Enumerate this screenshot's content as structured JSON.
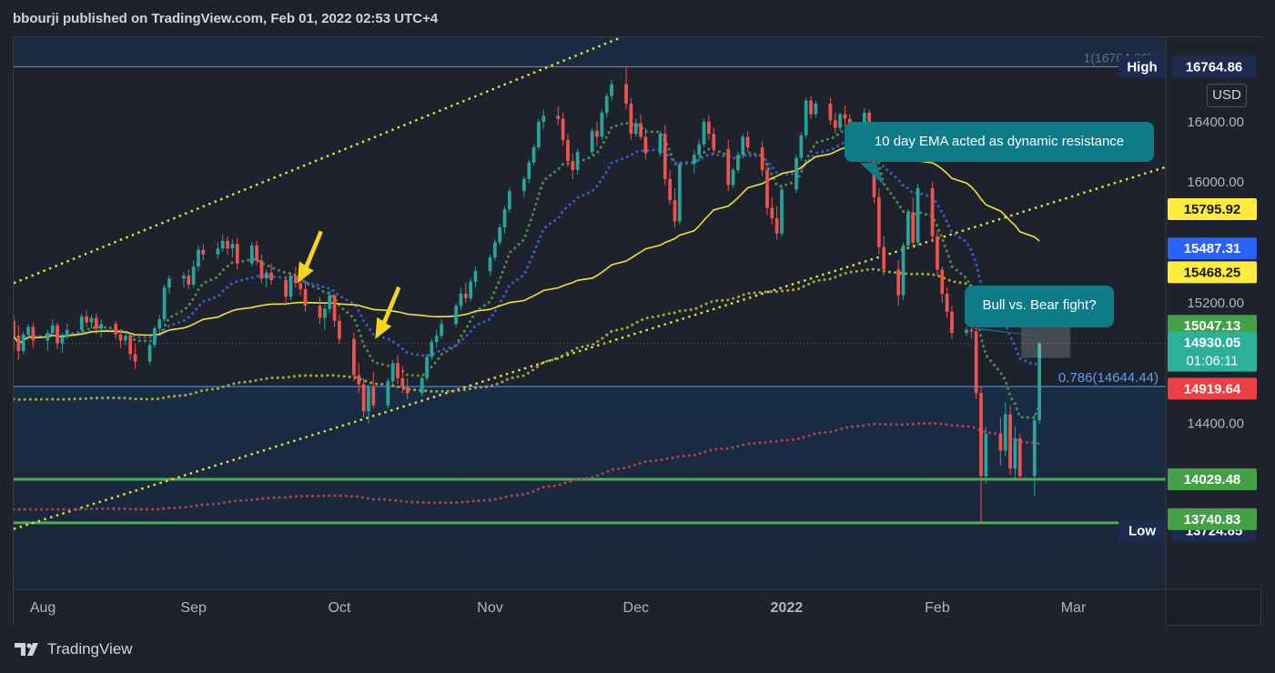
{
  "header": {
    "text": "bbourji published on TradingView.com, Feb 01, 2022 02:53 UTC+4"
  },
  "footer": {
    "brand": "TradingView"
  },
  "currency_button": "USD",
  "annotations": {
    "ema_callout": "10 day EMA acted as dynamic resistance",
    "fight_callout": "Bull vs. Bear fight?"
  },
  "colors": {
    "background": "#1a1e29",
    "up_candle": "#26a69a",
    "down_candle": "#ef5350",
    "ema_10": "#4e8c4a",
    "ema_20": "#3b5bc0",
    "sma_50": "#f2e13a",
    "ema_100": "#a8a640",
    "ema_200": "#b0424f",
    "channel": "#e6e33a",
    "support": "#4caf50",
    "callout": "#0e7c86"
  },
  "chart_data": {
    "type": "candlestick",
    "title": "",
    "y_ticks": [
      14400,
      14800,
      15200,
      15600,
      16000,
      16400
    ],
    "y_tick_labels": [
      "14400.00",
      "",
      "15200.00",
      "",
      "16000.00",
      "16400.00"
    ],
    "ylim": [
      13300,
      16960
    ],
    "x_labels": [
      {
        "label": "Aug",
        "date": "2021-08-01"
      },
      {
        "label": "Sep",
        "date": "2021-09-01"
      },
      {
        "label": "Oct",
        "date": "2021-10-01"
      },
      {
        "label": "Nov",
        "date": "2021-11-01"
      },
      {
        "label": "Dec",
        "date": "2021-12-01"
      },
      {
        "label": "2022",
        "date": "2022-01-01"
      },
      {
        "label": "Feb",
        "date": "2022-02-01"
      },
      {
        "label": "Mar",
        "date": "2022-03-01"
      }
    ],
    "xlim": [
      "2021-07-26",
      "2022-03-20"
    ],
    "high": {
      "label": "High",
      "value": 16764.86
    },
    "low": {
      "label": "Low",
      "value": 13724.85
    },
    "fib": {
      "label": "0.786(14644.44)",
      "value": 14644.44,
      "top_label": "1(16764.86)"
    },
    "price_badges": [
      {
        "value": "15795.92",
        "price": 15795.92,
        "bg": "#ffeb3b",
        "fg": "#131722"
      },
      {
        "value": "15487.31",
        "price": 15487.31,
        "bg": "#2962ff",
        "fg": "#ffffff"
      },
      {
        "value": "15468.25",
        "price": 15468.25,
        "bg": "#ffeb3b",
        "fg": "#131722"
      },
      {
        "value": "15047.13",
        "price": 15047.13,
        "bg": "#43a047",
        "fg": "#ffffff"
      },
      {
        "value": "14919.64",
        "price": 14919.64,
        "bg": "#ef3d44",
        "fg": "#ffffff"
      },
      {
        "value": "14029.48",
        "price": 14029.48,
        "bg": "#43a047",
        "fg": "#ffffff"
      },
      {
        "value": "13740.83",
        "price": 13740.83,
        "bg": "#43a047",
        "fg": "#ffffff"
      }
    ],
    "current": {
      "price": "14930.05",
      "countdown": "01:06:11",
      "value": 14930.05
    },
    "supports": [
      14029.48,
      13740.83
    ],
    "channel_lines": [
      {
        "from": [
          "2021-07-26",
          15330
        ],
        "to": [
          "2021-11-28",
          16960
        ]
      },
      {
        "from": [
          "2021-07-26",
          13700
        ],
        "to": [
          "2022-03-20",
          16100
        ]
      }
    ],
    "candles": [
      [
        "2021-07-26",
        15080,
        15120,
        14880,
        14980
      ],
      [
        "2021-07-27",
        14980,
        15050,
        14820,
        14880
      ],
      [
        "2021-07-28",
        14880,
        15010,
        14860,
        14990
      ],
      [
        "2021-07-29",
        14990,
        15060,
        14950,
        15040
      ],
      [
        "2021-07-30",
        15040,
        15070,
        14900,
        14950
      ],
      [
        "2021-08-02",
        14950,
        15020,
        14880,
        15000
      ],
      [
        "2021-08-03",
        15000,
        15090,
        14980,
        15050
      ],
      [
        "2021-08-04",
        15050,
        15070,
        14890,
        14930
      ],
      [
        "2021-08-05",
        14930,
        15000,
        14870,
        14970
      ],
      [
        "2021-08-06",
        14970,
        15060,
        14960,
        15020
      ],
      [
        "2021-08-09",
        15020,
        15130,
        15000,
        15110
      ],
      [
        "2021-08-10",
        15110,
        15150,
        15040,
        15070
      ],
      [
        "2021-08-11",
        15070,
        15120,
        15030,
        15100
      ],
      [
        "2021-08-12",
        15100,
        15130,
        14990,
        15030
      ],
      [
        "2021-08-13",
        15030,
        15090,
        14970,
        15060
      ],
      [
        "2021-08-16",
        15060,
        15080,
        14960,
        14990
      ],
      [
        "2021-08-17",
        14990,
        15020,
        14900,
        14950
      ],
      [
        "2021-08-18",
        14950,
        15010,
        14920,
        14980
      ],
      [
        "2021-08-19",
        14980,
        15000,
        14820,
        14860
      ],
      [
        "2021-08-20",
        14860,
        14930,
        14760,
        14810
      ],
      [
        "2021-08-23",
        14810,
        14930,
        14790,
        14920
      ],
      [
        "2021-08-24",
        14920,
        15050,
        14900,
        15030
      ],
      [
        "2021-08-25",
        15030,
        15120,
        15000,
        15090
      ],
      [
        "2021-08-26",
        15090,
        15320,
        15070,
        15300
      ],
      [
        "2021-08-27",
        15300,
        15380,
        15260,
        15360
      ],
      [
        "2021-08-30",
        15360,
        15400,
        15300,
        15380
      ],
      [
        "2021-08-31",
        15380,
        15420,
        15290,
        15320
      ],
      [
        "2021-09-01",
        15320,
        15480,
        15300,
        15440
      ],
      [
        "2021-09-02",
        15440,
        15580,
        15410,
        15550
      ],
      [
        "2021-09-03",
        15550,
        15590,
        15480,
        15520
      ],
      [
        "2021-09-06",
        15520,
        15600,
        15490,
        15560
      ],
      [
        "2021-09-07",
        15560,
        15650,
        15540,
        15610
      ],
      [
        "2021-09-08",
        15610,
        15640,
        15520,
        15560
      ],
      [
        "2021-09-09",
        15560,
        15620,
        15500,
        15590
      ],
      [
        "2021-09-10",
        15590,
        15630,
        15420,
        15460
      ],
      [
        "2021-09-13",
        15460,
        15600,
        15440,
        15580
      ],
      [
        "2021-09-14",
        15580,
        15610,
        15450,
        15480
      ],
      [
        "2021-09-15",
        15480,
        15520,
        15330,
        15360
      ],
      [
        "2021-09-16",
        15360,
        15420,
        15300,
        15400
      ],
      [
        "2021-09-17",
        15400,
        15460,
        15320,
        15350
      ],
      [
        "2021-09-20",
        15350,
        15380,
        15180,
        15240
      ],
      [
        "2021-09-21",
        15240,
        15400,
        15220,
        15380
      ],
      [
        "2021-09-22",
        15380,
        15440,
        15300,
        15330
      ],
      [
        "2021-09-23",
        15330,
        15380,
        15250,
        15290
      ],
      [
        "2021-09-24",
        15290,
        15340,
        15140,
        15180
      ],
      [
        "2021-09-27",
        15180,
        15240,
        15060,
        15100
      ],
      [
        "2021-09-28",
        15100,
        15190,
        15020,
        15160
      ],
      [
        "2021-09-29",
        15160,
        15280,
        15130,
        15250
      ],
      [
        "2021-09-30",
        15250,
        15260,
        15040,
        15080
      ],
      [
        "2021-10-01",
        15080,
        15120,
        14930,
        14960
      ],
      [
        "2021-10-04",
        14960,
        15000,
        14680,
        14720
      ],
      [
        "2021-10-05",
        14720,
        14800,
        14600,
        14660
      ],
      [
        "2021-10-06",
        14660,
        14700,
        14440,
        14480
      ],
      [
        "2021-10-07",
        14480,
        14660,
        14400,
        14640
      ],
      [
        "2021-10-08",
        14640,
        14740,
        14500,
        14520
      ],
      [
        "2021-10-11",
        14520,
        14700,
        14500,
        14680
      ],
      [
        "2021-10-12",
        14680,
        14820,
        14660,
        14800
      ],
      [
        "2021-10-13",
        14800,
        14850,
        14660,
        14700
      ],
      [
        "2021-10-14",
        14700,
        14780,
        14600,
        14640
      ],
      [
        "2021-10-15",
        14640,
        14700,
        14560,
        14600
      ],
      [
        "2021-10-18",
        14600,
        14720,
        14580,
        14700
      ],
      [
        "2021-10-19",
        14700,
        14860,
        14680,
        14840
      ],
      [
        "2021-10-20",
        14840,
        14960,
        14820,
        14940
      ],
      [
        "2021-10-21",
        14940,
        15020,
        14900,
        14980
      ],
      [
        "2021-10-22",
        14980,
        15090,
        14960,
        15060
      ],
      [
        "2021-10-25",
        15060,
        15200,
        15040,
        15180
      ],
      [
        "2021-10-26",
        15180,
        15300,
        15150,
        15260
      ],
      [
        "2021-10-27",
        15260,
        15330,
        15200,
        15230
      ],
      [
        "2021-10-28",
        15230,
        15360,
        15210,
        15340
      ],
      [
        "2021-10-29",
        15340,
        15440,
        15300,
        15410
      ],
      [
        "2021-11-01",
        15410,
        15520,
        15380,
        15500
      ],
      [
        "2021-11-02",
        15500,
        15620,
        15480,
        15600
      ],
      [
        "2021-11-03",
        15600,
        15720,
        15580,
        15700
      ],
      [
        "2021-11-04",
        15700,
        15840,
        15660,
        15820
      ],
      [
        "2021-11-05",
        15820,
        15960,
        15800,
        15940
      ],
      [
        "2021-11-08",
        15940,
        16040,
        15900,
        16020
      ],
      [
        "2021-11-09",
        16020,
        16150,
        15990,
        16130
      ],
      [
        "2021-11-10",
        16130,
        16250,
        16110,
        16230
      ],
      [
        "2021-11-11",
        16230,
        16420,
        16210,
        16400
      ],
      [
        "2021-11-12",
        16400,
        16480,
        16350,
        16440
      ],
      [
        "2021-11-15",
        16440,
        16500,
        16380,
        16420
      ],
      [
        "2021-11-16",
        16420,
        16460,
        16240,
        16280
      ],
      [
        "2021-11-17",
        16280,
        16320,
        16100,
        16140
      ],
      [
        "2021-11-18",
        16140,
        16190,
        16020,
        16080
      ],
      [
        "2021-11-19",
        16080,
        16220,
        16050,
        16200
      ],
      [
        "2021-11-22",
        16200,
        16360,
        16180,
        16340
      ],
      [
        "2021-11-23",
        16340,
        16400,
        16240,
        16300
      ],
      [
        "2021-11-24",
        16300,
        16480,
        16280,
        16460
      ],
      [
        "2021-11-25",
        16460,
        16590,
        16430,
        16570
      ],
      [
        "2021-11-26",
        16570,
        16680,
        16540,
        16650
      ],
      [
        "2021-11-29",
        16650,
        16765,
        16480,
        16520
      ],
      [
        "2021-11-30",
        16520,
        16560,
        16280,
        16320
      ],
      [
        "2021-12-01",
        16320,
        16420,
        16300,
        16390
      ],
      [
        "2021-12-02",
        16390,
        16450,
        16280,
        16300
      ],
      [
        "2021-12-03",
        16300,
        16360,
        16150,
        16190
      ],
      [
        "2021-12-06",
        16190,
        16340,
        16170,
        16320
      ],
      [
        "2021-12-07",
        16320,
        16380,
        15980,
        16020
      ],
      [
        "2021-12-08",
        16020,
        16080,
        15850,
        15880
      ],
      [
        "2021-12-09",
        15880,
        15960,
        15700,
        15740
      ],
      [
        "2021-12-10",
        15740,
        16130,
        15720,
        16120
      ],
      [
        "2021-12-13",
        16120,
        16210,
        16060,
        16180
      ],
      [
        "2021-12-14",
        16180,
        16280,
        16140,
        16250
      ],
      [
        "2021-12-15",
        16250,
        16420,
        16230,
        16400
      ],
      [
        "2021-12-16",
        16400,
        16440,
        16280,
        16320
      ],
      [
        "2021-12-17",
        16320,
        16360,
        16180,
        16220
      ],
      [
        "2021-12-20",
        16220,
        16280,
        15940,
        15980
      ],
      [
        "2021-12-21",
        15980,
        16100,
        15960,
        16080
      ],
      [
        "2021-12-22",
        16080,
        16200,
        16060,
        16180
      ],
      [
        "2021-12-23",
        16180,
        16320,
        16160,
        16300
      ],
      [
        "2021-12-24",
        16300,
        16340,
        16200,
        16230
      ],
      [
        "2021-12-27",
        16230,
        16270,
        16040,
        16080
      ],
      [
        "2021-12-28",
        16080,
        16120,
        15780,
        15830
      ],
      [
        "2021-12-29",
        15830,
        15900,
        15720,
        15760
      ],
      [
        "2021-12-30",
        15760,
        15840,
        15620,
        15660
      ],
      [
        "2021-12-31",
        15660,
        15980,
        15640,
        15950
      ],
      [
        "2022-01-03",
        15950,
        16180,
        15930,
        16160
      ],
      [
        "2022-01-04",
        16160,
        16330,
        16140,
        16310
      ],
      [
        "2022-01-05",
        16310,
        16560,
        16290,
        16540
      ],
      [
        "2022-01-06",
        16540,
        16570,
        16420,
        16450
      ],
      [
        "2022-01-07",
        16450,
        16540,
        16430,
        16520
      ],
      [
        "2022-01-10",
        16520,
        16560,
        16380,
        16410
      ],
      [
        "2022-01-11",
        16410,
        16460,
        16320,
        16360
      ],
      [
        "2022-01-12",
        16360,
        16460,
        16340,
        16450
      ],
      [
        "2022-01-13",
        16450,
        16510,
        16370,
        16420
      ],
      [
        "2022-01-14",
        16420,
        16450,
        16180,
        16220
      ],
      [
        "2022-01-17",
        16220,
        16490,
        16200,
        16460
      ],
      [
        "2022-01-18",
        16460,
        16480,
        16100,
        16150
      ],
      [
        "2022-01-19",
        16150,
        16180,
        15860,
        15900
      ],
      [
        "2022-01-20",
        15900,
        15960,
        15520,
        15570
      ],
      [
        "2022-01-21",
        15570,
        15640,
        15380,
        15420
      ],
      [
        "2022-01-24",
        15420,
        15480,
        15180,
        15250
      ],
      [
        "2022-01-25",
        15250,
        15600,
        15220,
        15580
      ],
      [
        "2022-01-26",
        15580,
        15820,
        15560,
        15800
      ],
      [
        "2022-01-27",
        15800,
        15900,
        15560,
        15600
      ],
      [
        "2022-01-28",
        15600,
        15990,
        15580,
        15960
      ],
      [
        "2022-01-31",
        15960,
        16000,
        15600,
        15640
      ],
      [
        "2022-02-01",
        15640,
        15680,
        15380,
        15420
      ],
      [
        "2022-02-02",
        15420,
        15440,
        15200,
        15260
      ],
      [
        "2022-02-03",
        15260,
        15300,
        15100,
        15140
      ],
      [
        "2022-02-04",
        15140,
        15180,
        14960,
        15000
      ],
      [
        "2022-02-07",
        15000,
        15040,
        14980,
        15020
      ],
      [
        "2022-02-08",
        15020,
        15060,
        14960,
        15010
      ],
      [
        "2022-02-09",
        15010,
        15040,
        14560,
        14600
      ],
      [
        "2022-02-10",
        14600,
        14650,
        13740,
        14050
      ],
      [
        "2022-02-11",
        14050,
        14380,
        14000,
        14330
      ],
      [
        "2022-02-14",
        14330,
        14440,
        14120,
        14220
      ],
      [
        "2022-02-15",
        14220,
        14540,
        14180,
        14460
      ],
      [
        "2022-02-16",
        14460,
        14520,
        14060,
        14100
      ],
      [
        "2022-02-17",
        14100,
        14380,
        14040,
        14300
      ],
      [
        "2022-02-18",
        14300,
        14330,
        14020,
        14050
      ],
      [
        "2022-02-21",
        14050,
        14460,
        13920,
        14420
      ],
      [
        "2022-02-22",
        14420,
        14940,
        14400,
        14930
      ]
    ]
  }
}
